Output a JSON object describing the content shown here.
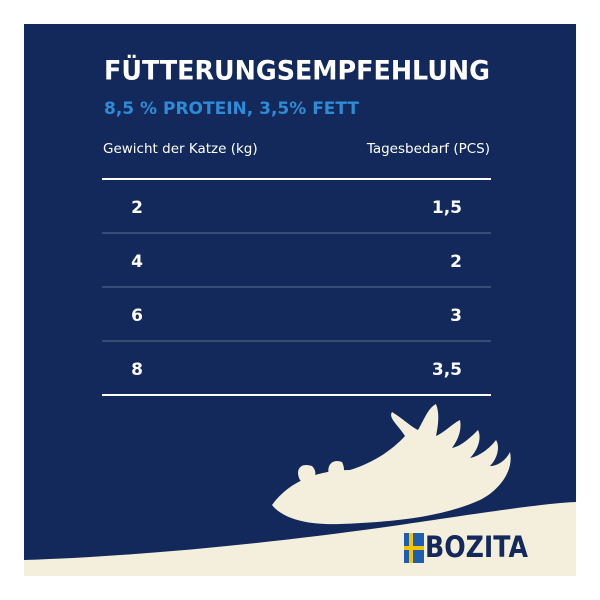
{
  "header": {
    "title": "FÜTTERUNGSEMPFEHLUNG",
    "subtitle": "8,5 % PROTEIN, 3,5% FETT"
  },
  "table": {
    "columns": [
      "Gewicht der Katze (kg)",
      "Tagesbedarf (PCS)"
    ],
    "rows": [
      [
        "2",
        "1,5"
      ],
      [
        "4",
        "2"
      ],
      [
        "6",
        "3"
      ],
      [
        "8",
        "3,5"
      ]
    ]
  },
  "logo": {
    "text": "BOZITA"
  }
}
